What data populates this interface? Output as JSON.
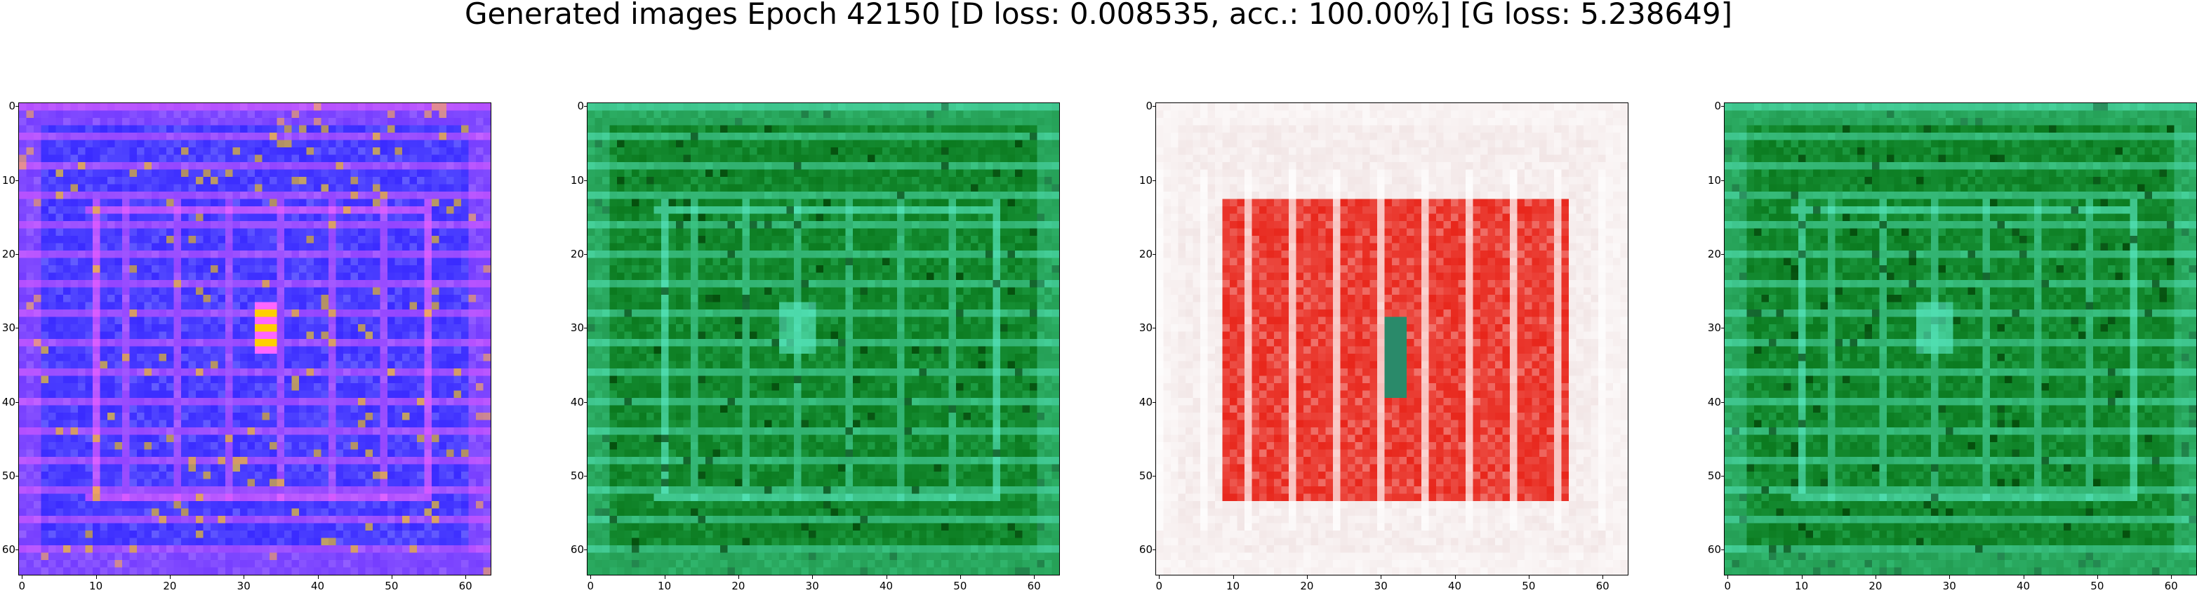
{
  "figure": {
    "title": "Generated images Epoch 42150 [D loss: 0.008535, acc.: 100.00%] [G loss: 5.238649]"
  },
  "axes": {
    "tick_values": [
      0,
      10,
      20,
      30,
      40,
      50,
      60
    ],
    "image_size": 64
  },
  "panels": [
    {
      "palette": {
        "base": "#3a2bff",
        "accent": "#8d8dff",
        "highlight": "#ff66ff",
        "hot": "#ffd000"
      }
    },
    {
      "palette": {
        "base": "#0b7a1f",
        "accent": "#2fbf67",
        "highlight": "#5ef2d0",
        "hot": "#003300"
      }
    },
    {
      "palette": {
        "base": "#f2e6e6",
        "accent": "#e8261b",
        "highlight": "#ffffff",
        "hot": "#2a8a6a"
      }
    },
    {
      "palette": {
        "base": "#0b7a1f",
        "accent": "#2fbf67",
        "highlight": "#5ef2d0",
        "hot": "#003300"
      }
    }
  ]
}
